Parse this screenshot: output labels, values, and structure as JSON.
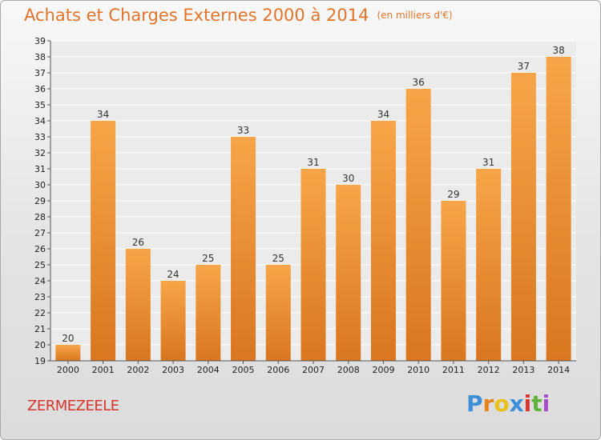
{
  "header": {
    "title": "Achats et Charges Externes 2000 à 2014",
    "unit": "(en milliers d'€)"
  },
  "footer": {
    "town": "ZERMEZEELE",
    "logo_letters": [
      "P",
      "r",
      "o",
      "x",
      "i",
      "t",
      "i"
    ],
    "logo_colors": [
      "#3d8fd9",
      "#e8841a",
      "#e8c21a",
      "#3d8fd9",
      "#d9362f",
      "#5fb33a",
      "#a64bc9"
    ]
  },
  "colors": {
    "bar_light": "#f7a548",
    "bar_dark": "#d9761f",
    "title": "#e2742a",
    "town": "#d9362f"
  },
  "chart_data": {
    "type": "bar",
    "categories": [
      "2000",
      "2001",
      "2002",
      "2003",
      "2004",
      "2005",
      "2006",
      "2007",
      "2008",
      "2009",
      "2010",
      "2011",
      "2012",
      "2013",
      "2014"
    ],
    "values": [
      20,
      34,
      26,
      24,
      25,
      33,
      25,
      31,
      30,
      34,
      36,
      29,
      31,
      37,
      38
    ],
    "title": "Achats et Charges Externes 2000 à 2014",
    "ylim": [
      19,
      39
    ],
    "yticks": [
      19,
      20,
      21,
      22,
      23,
      24,
      25,
      26,
      27,
      28,
      29,
      30,
      31,
      32,
      33,
      34,
      35,
      36,
      37,
      38,
      39
    ],
    "grid": true
  }
}
